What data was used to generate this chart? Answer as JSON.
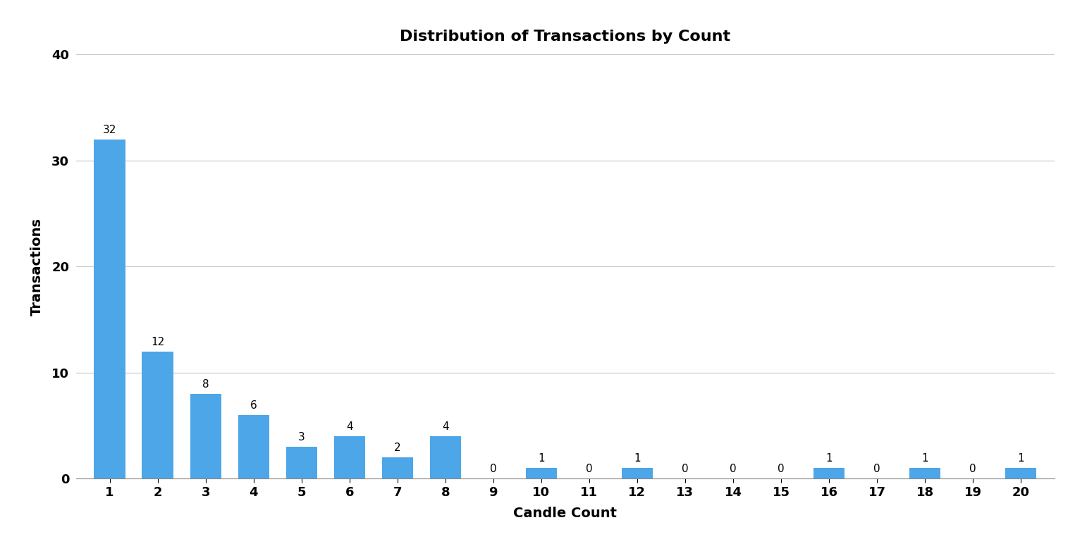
{
  "title": "Distribution of Transactions by Count",
  "xlabel": "Candle Count",
  "ylabel": "Transactions",
  "categories": [
    1,
    2,
    3,
    4,
    5,
    6,
    7,
    8,
    9,
    10,
    11,
    12,
    13,
    14,
    15,
    16,
    17,
    18,
    19,
    20
  ],
  "values": [
    32,
    12,
    8,
    6,
    3,
    4,
    2,
    4,
    0,
    1,
    0,
    1,
    0,
    0,
    0,
    1,
    0,
    1,
    0,
    1
  ],
  "bar_color": "#4DA6E8",
  "ylim": [
    0,
    40
  ],
  "yticks": [
    0,
    10,
    20,
    30,
    40
  ],
  "background_color": "#ffffff",
  "grid_color": "#c8c8c8",
  "title_fontsize": 16,
  "label_fontsize": 14,
  "tick_fontsize": 13,
  "annotation_fontsize": 11
}
